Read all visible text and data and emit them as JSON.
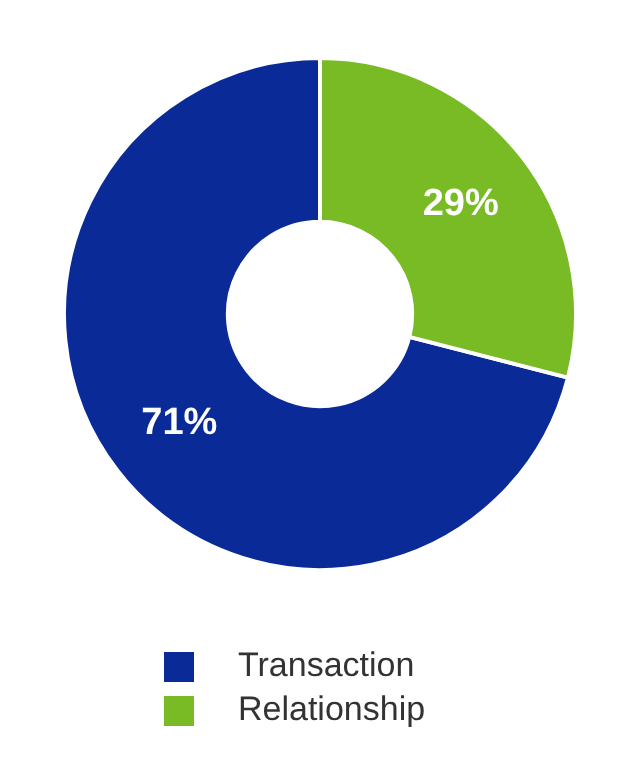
{
  "chart_data": {
    "type": "donut",
    "categories": [
      "Transaction",
      "Relationship"
    ],
    "values": [
      71,
      29
    ],
    "colors": [
      "#0a2a97",
      "#78bb25"
    ],
    "value_labels": [
      "71%",
      "29%"
    ],
    "legend": "bottom"
  }
}
